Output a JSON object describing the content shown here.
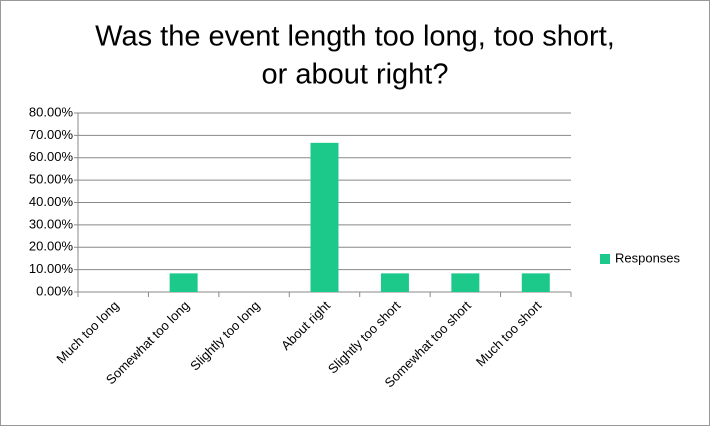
{
  "chart_data": {
    "type": "bar",
    "title": [
      "Was the event length too long, too short,",
      "or about right?"
    ],
    "categories": [
      "Much too long",
      "Somewhat too long",
      "Slightly too long",
      "About right",
      "Slightly too short",
      "Somewhat too short",
      "Much too short"
    ],
    "series": [
      {
        "name": "Responses",
        "color": "#1dc98a",
        "values": [
          0,
          8.33,
          0,
          66.67,
          8.33,
          8.33,
          8.33
        ]
      }
    ],
    "ylim": [
      0,
      80
    ],
    "yticks": [
      {
        "value": 0,
        "label": "0.00%"
      },
      {
        "value": 10,
        "label": "10.00%"
      },
      {
        "value": 20,
        "label": "20.00%"
      },
      {
        "value": 30,
        "label": "30.00%"
      },
      {
        "value": 40,
        "label": "40.00%"
      },
      {
        "value": 50,
        "label": "50.00%"
      },
      {
        "value": 60,
        "label": "60.00%"
      },
      {
        "value": 70,
        "label": "70.00%"
      },
      {
        "value": 80,
        "label": "80.00%"
      }
    ],
    "grid": true,
    "legend": "right"
  }
}
